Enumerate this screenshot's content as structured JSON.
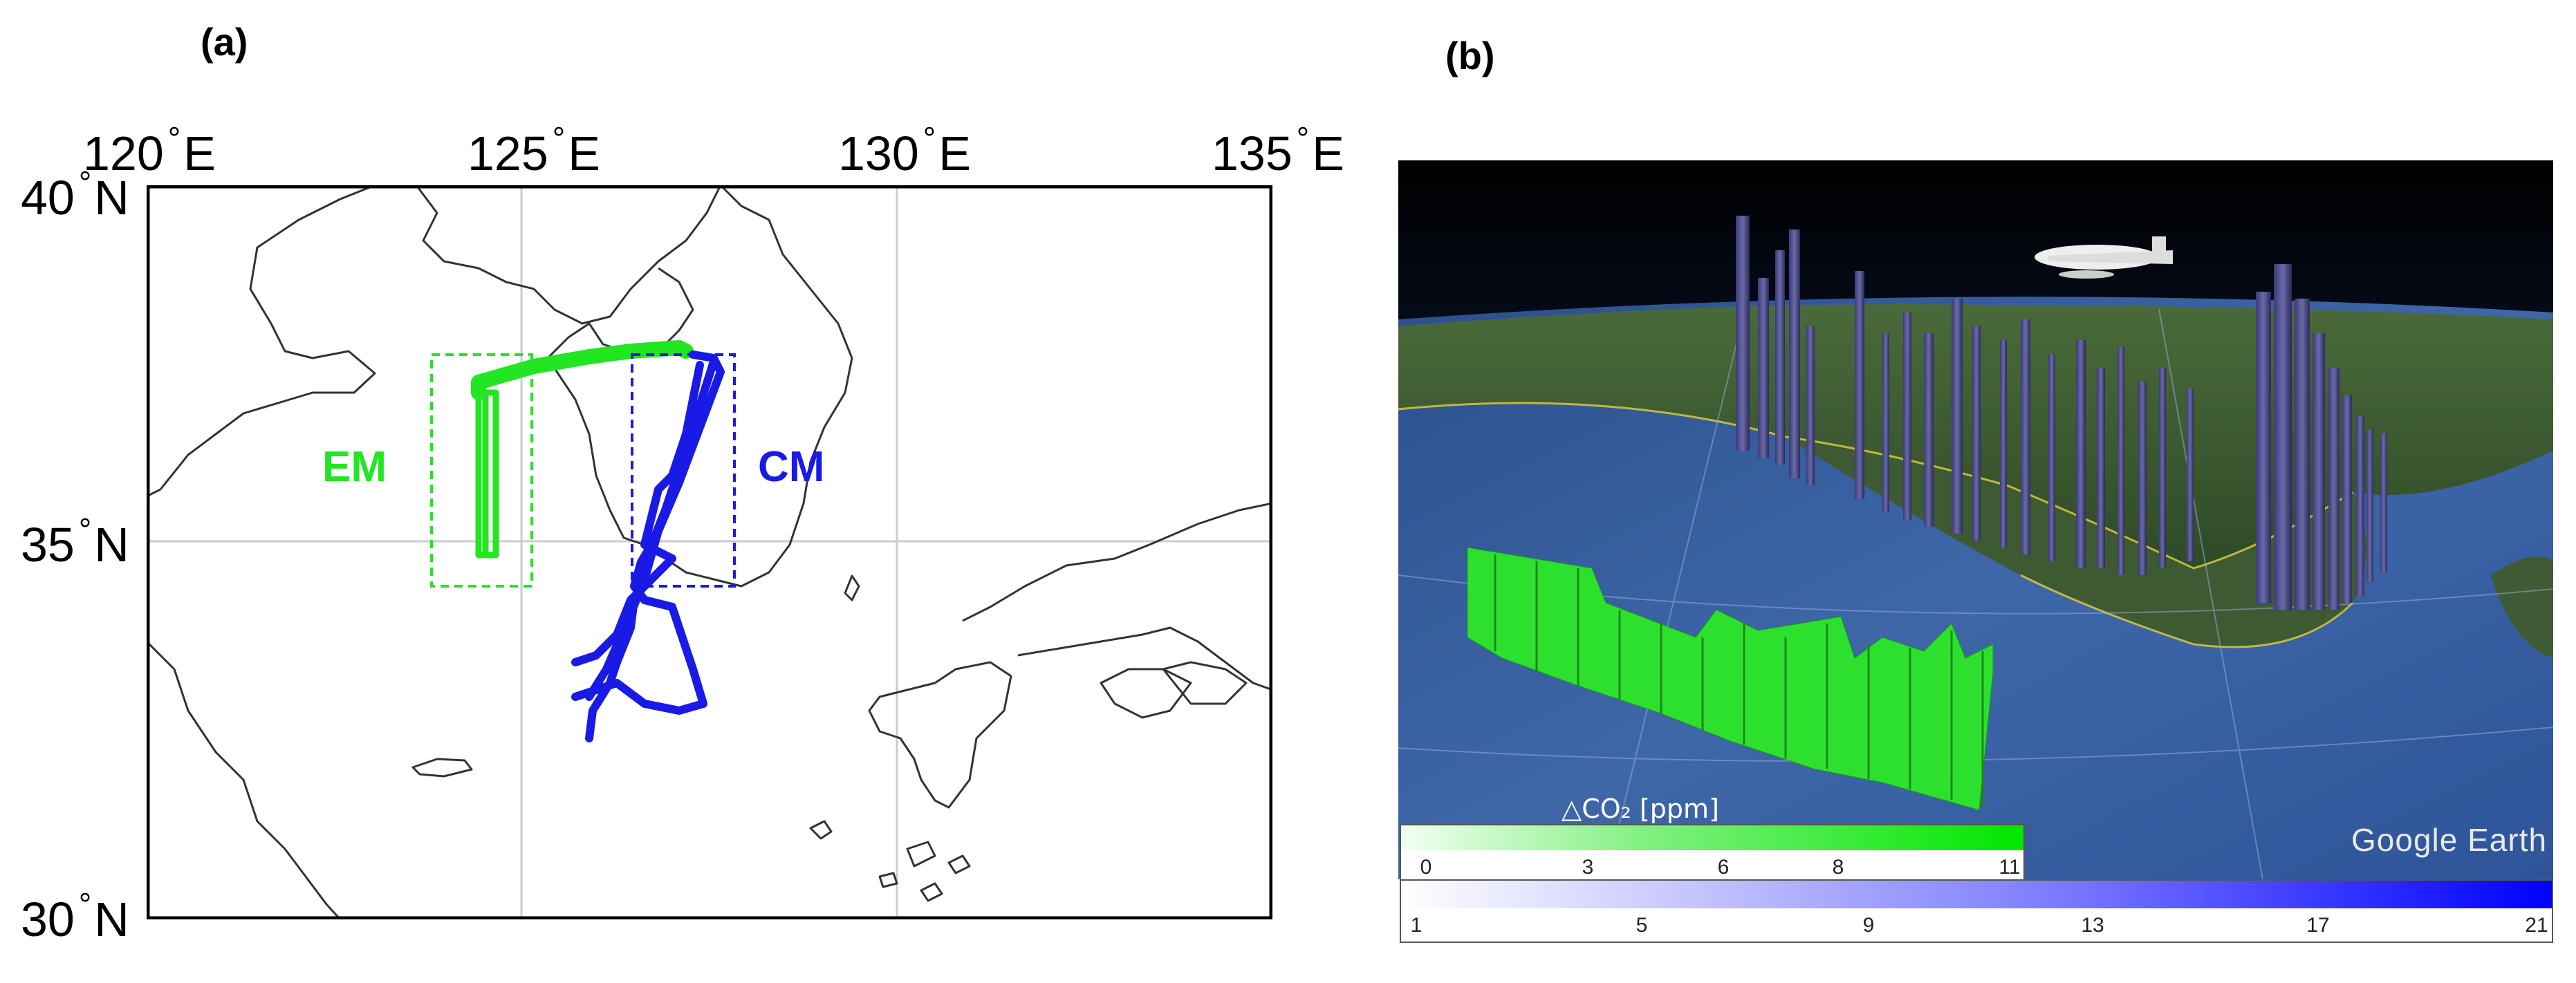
{
  "panel_a": {
    "label": "(a)",
    "lon_labels": [
      {
        "value": "120",
        "suffix": "E"
      },
      {
        "value": "125",
        "suffix": "E"
      },
      {
        "value": "130",
        "suffix": "E"
      },
      {
        "value": "135",
        "suffix": "E"
      }
    ],
    "lat_labels": [
      {
        "value": "40",
        "suffix": "N"
      },
      {
        "value": "35",
        "suffix": "N"
      },
      {
        "value": "30",
        "suffix": "N"
      }
    ],
    "region_em": {
      "label": "EM",
      "color": "#22e622"
    },
    "region_cm": {
      "label": "CM",
      "color": "#1a1ae6"
    },
    "coast_color": "#333333",
    "grid_color": "#cccccc"
  },
  "panel_b": {
    "label": "(b)",
    "green_colorbar": {
      "title": "△CO₂ [ppm]",
      "ticks": [
        "0",
        "3",
        "6",
        "8",
        "11"
      ],
      "color_start": "#f2fff2",
      "color_end": "#00e600"
    },
    "blue_colorbar": {
      "ticks": [
        "1",
        "5",
        "9",
        "13",
        "17",
        "21"
      ],
      "color_start": "#ffffff",
      "color_end": "#0000ff"
    },
    "logo": "Google Earth"
  }
}
